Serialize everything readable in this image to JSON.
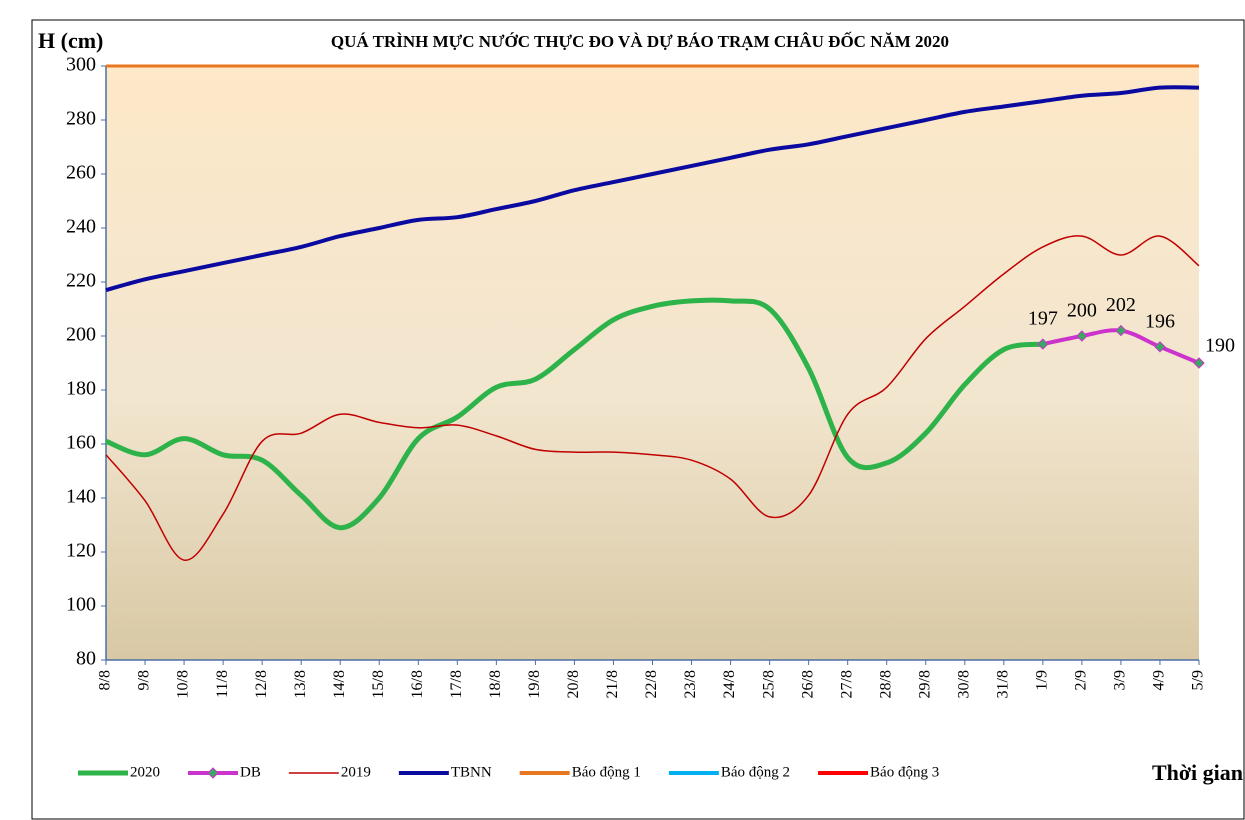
{
  "chart_data": {
    "type": "line",
    "title": "QUÁ TRÌNH MỰC NƯỚC THỰC ĐO VÀ DỰ BÁO TRẠM CHÂU ĐỐC NĂM  2020",
    "y_label": "H (cm)",
    "x_label": "Thời gian",
    "categories": [
      "8/8",
      "9/8",
      "10/8",
      "11/8",
      "12/8",
      "13/8",
      "14/8",
      "15/8",
      "16/8",
      "17/8",
      "18/8",
      "19/8",
      "20/8",
      "21/8",
      "22/8",
      "23/8",
      "24/8",
      "25/8",
      "26/8",
      "27/8",
      "28/8",
      "29/8",
      "30/8",
      "31/8",
      "1/9",
      "2/9",
      "3/9",
      "4/9",
      "5/9"
    ],
    "ylim": [
      80,
      300
    ],
    "yticks": [
      80,
      100,
      120,
      140,
      160,
      180,
      200,
      220,
      240,
      260,
      280,
      300
    ],
    "grid": false,
    "legend": "bottom",
    "series": [
      {
        "name": "2020",
        "color": "#2db34a",
        "values": [
          161,
          156,
          162,
          156,
          154,
          141,
          129,
          140,
          162,
          170,
          181,
          184,
          195,
          206,
          211,
          213,
          213,
          210,
          188,
          155,
          153,
          164,
          182,
          195,
          197,
          null,
          null,
          null,
          null
        ]
      },
      {
        "name": "DB",
        "color": "#cc33cc",
        "marker_color": "#3aa860",
        "values": [
          null,
          null,
          null,
          null,
          null,
          null,
          null,
          null,
          null,
          null,
          null,
          null,
          null,
          null,
          null,
          null,
          null,
          null,
          null,
          null,
          null,
          null,
          null,
          null,
          197,
          200,
          202,
          196,
          190
        ]
      },
      {
        "name": "2019",
        "color": "#c00000",
        "values": [
          156,
          139,
          117,
          134,
          161,
          164,
          171,
          168,
          166,
          167,
          163,
          158,
          157,
          157,
          156,
          154,
          147,
          133,
          141,
          171,
          181,
          199,
          211,
          223,
          233,
          237,
          230,
          237,
          226
        ]
      },
      {
        "name": "TBNN",
        "color": "#0a0aa0",
        "values": [
          217,
          221,
          224,
          227,
          230,
          233,
          237,
          240,
          243,
          244,
          247,
          250,
          254,
          257,
          260,
          263,
          266,
          269,
          271,
          274,
          277,
          280,
          283,
          285,
          287,
          289,
          290,
          292,
          292
        ]
      },
      {
        "name": "Báo động 1",
        "color": "#e87722",
        "values": [
          300,
          300,
          300,
          300,
          300,
          300,
          300,
          300,
          300,
          300,
          300,
          300,
          300,
          300,
          300,
          300,
          300,
          300,
          300,
          300,
          300,
          300,
          300,
          300,
          300,
          300,
          300,
          300,
          300
        ]
      },
      {
        "name": "Báo động 2",
        "color": "#00b0f0",
        "values": [
          null,
          null,
          null,
          null,
          null,
          null,
          null,
          null,
          null,
          null,
          null,
          null,
          null,
          null,
          null,
          null,
          null,
          null,
          null,
          null,
          null,
          null,
          null,
          null,
          null,
          null,
          null,
          null,
          null
        ]
      },
      {
        "name": "Báo động 3",
        "color": "#ff0000",
        "values": [
          null,
          null,
          null,
          null,
          null,
          null,
          null,
          null,
          null,
          null,
          null,
          null,
          null,
          null,
          null,
          null,
          null,
          null,
          null,
          null,
          null,
          null,
          null,
          null,
          null,
          null,
          null,
          null,
          null
        ]
      }
    ]
  }
}
